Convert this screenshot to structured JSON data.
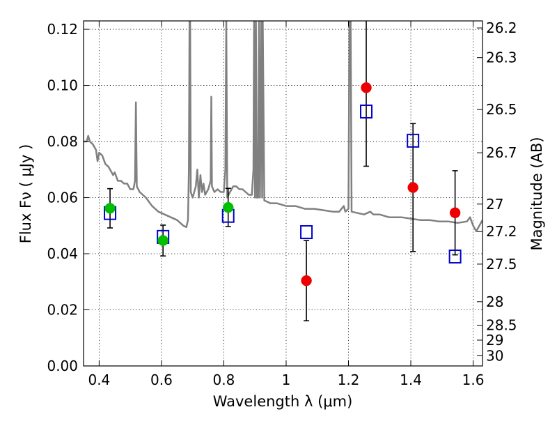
{
  "chart_data": {
    "type": "scatter",
    "xlabel": "Wavelength  λ (μm)",
    "ylabel": "Flux  Fν  ( μJy )",
    "ylabel_right": "Magnitude (AB)",
    "xlim": [
      0.35,
      1.63
    ],
    "ylim": [
      0.0,
      0.123
    ],
    "x_ticks": [
      0.4,
      0.6,
      0.8,
      1.0,
      1.2,
      1.4,
      1.6
    ],
    "x_tick_labels": [
      "0.4",
      "0.6",
      "0.8",
      "1",
      "1.2",
      "1.4",
      "1.6"
    ],
    "y_ticks": [
      0.0,
      0.02,
      0.04,
      0.06,
      0.08,
      0.1,
      0.12
    ],
    "y_tick_labels": [
      "0.00",
      "0.02",
      "0.04",
      "0.06",
      "0.08",
      "0.10",
      "0.12"
    ],
    "right_ticks": [
      {
        "label": "26.2",
        "flux": 0.1205
      },
      {
        "label": "26.3",
        "flux": 0.1099
      },
      {
        "label": "26.5",
        "flux": 0.0914
      },
      {
        "label": "26.7",
        "flux": 0.076
      },
      {
        "label": "27",
        "flux": 0.0577
      },
      {
        "label": "27.2",
        "flux": 0.0479
      },
      {
        "label": "27.5",
        "flux": 0.0363
      },
      {
        "label": "28",
        "flux": 0.0229
      },
      {
        "label": "28.5",
        "flux": 0.0145
      },
      {
        "label": "29",
        "flux": 0.0092
      },
      {
        "label": "30",
        "flux": 0.0036
      }
    ],
    "grid": true,
    "colors": {
      "model_sed": "#808080",
      "green_points": "#00c000",
      "red_points": "#ee0000",
      "model_boxes": "#0000cc",
      "errorbars": "#000000"
    },
    "series": [
      {
        "style": "model-sed-line",
        "points": [
          [
            0.35,
            0.08
          ],
          [
            0.36,
            0.08
          ],
          [
            0.365,
            0.082
          ],
          [
            0.37,
            0.08
          ],
          [
            0.38,
            0.079
          ],
          [
            0.39,
            0.077
          ],
          [
            0.395,
            0.073
          ],
          [
            0.4,
            0.076
          ],
          [
            0.41,
            0.075
          ],
          [
            0.42,
            0.072
          ],
          [
            0.43,
            0.071
          ],
          [
            0.44,
            0.069
          ],
          [
            0.445,
            0.068
          ],
          [
            0.45,
            0.069
          ],
          [
            0.46,
            0.066
          ],
          [
            0.47,
            0.066
          ],
          [
            0.48,
            0.065
          ],
          [
            0.49,
            0.065
          ],
          [
            0.5,
            0.063
          ],
          [
            0.51,
            0.063
          ],
          [
            0.515,
            0.066
          ],
          [
            0.518,
            0.094
          ],
          [
            0.521,
            0.064
          ],
          [
            0.53,
            0.062
          ],
          [
            0.55,
            0.06
          ],
          [
            0.57,
            0.057
          ],
          [
            0.59,
            0.055
          ],
          [
            0.61,
            0.054
          ],
          [
            0.63,
            0.053
          ],
          [
            0.65,
            0.052
          ],
          [
            0.67,
            0.05
          ],
          [
            0.68,
            0.0495
          ],
          [
            0.685,
            0.052
          ],
          [
            0.688,
            0.07
          ],
          [
            0.69,
            0.123
          ],
          [
            0.692,
            0.123
          ],
          [
            0.694,
            0.062
          ],
          [
            0.7,
            0.06
          ],
          [
            0.71,
            0.064
          ],
          [
            0.715,
            0.07
          ],
          [
            0.72,
            0.06
          ],
          [
            0.725,
            0.068
          ],
          [
            0.73,
            0.062
          ],
          [
            0.735,
            0.065
          ],
          [
            0.74,
            0.061
          ],
          [
            0.75,
            0.063
          ],
          [
            0.758,
            0.066
          ],
          [
            0.76,
            0.096
          ],
          [
            0.762,
            0.064
          ],
          [
            0.77,
            0.062
          ],
          [
            0.78,
            0.063
          ],
          [
            0.79,
            0.062
          ],
          [
            0.8,
            0.062
          ],
          [
            0.805,
            0.07
          ],
          [
            0.808,
            0.123
          ],
          [
            0.811,
            0.06
          ],
          [
            0.82,
            0.062
          ],
          [
            0.83,
            0.064
          ],
          [
            0.84,
            0.064
          ],
          [
            0.85,
            0.063
          ],
          [
            0.86,
            0.063
          ],
          [
            0.87,
            0.062
          ],
          [
            0.88,
            0.061
          ],
          [
            0.89,
            0.061
          ],
          [
            0.895,
            0.07
          ],
          [
            0.897,
            0.123
          ],
          [
            0.9,
            0.06
          ],
          [
            0.903,
            0.123
          ],
          [
            0.906,
            0.06
          ],
          [
            0.91,
            0.06
          ],
          [
            0.913,
            0.123
          ],
          [
            0.916,
            0.06
          ],
          [
            0.92,
            0.123
          ],
          [
            0.923,
            0.06
          ],
          [
            0.925,
            0.123
          ],
          [
            0.93,
            0.059
          ],
          [
            0.95,
            0.058
          ],
          [
            0.97,
            0.058
          ],
          [
            1.0,
            0.057
          ],
          [
            1.03,
            0.057
          ],
          [
            1.06,
            0.056
          ],
          [
            1.09,
            0.056
          ],
          [
            1.12,
            0.0555
          ],
          [
            1.15,
            0.055
          ],
          [
            1.17,
            0.055
          ],
          [
            1.185,
            0.057
          ],
          [
            1.19,
            0.055
          ],
          [
            1.2,
            0.056
          ],
          [
            1.203,
            0.123
          ],
          [
            1.207,
            0.123
          ],
          [
            1.21,
            0.055
          ],
          [
            1.25,
            0.054
          ],
          [
            1.27,
            0.055
          ],
          [
            1.28,
            0.054
          ],
          [
            1.3,
            0.054
          ],
          [
            1.33,
            0.053
          ],
          [
            1.37,
            0.053
          ],
          [
            1.4,
            0.0525
          ],
          [
            1.43,
            0.052
          ],
          [
            1.46,
            0.052
          ],
          [
            1.49,
            0.0515
          ],
          [
            1.52,
            0.0515
          ],
          [
            1.55,
            0.051
          ],
          [
            1.58,
            0.0515
          ],
          [
            1.59,
            0.053
          ],
          [
            1.6,
            0.05
          ],
          [
            1.61,
            0.048
          ],
          [
            1.62,
            0.05
          ],
          [
            1.63,
            0.052
          ]
        ]
      },
      {
        "style": "green-circles",
        "points": [
          {
            "x": 0.435,
            "y": 0.0562,
            "err": 0.007
          },
          {
            "x": 0.605,
            "y": 0.0447,
            "err": 0.0055
          },
          {
            "x": 0.814,
            "y": 0.0565,
            "err": 0.0068
          }
        ]
      },
      {
        "style": "red-circles",
        "points": [
          {
            "x": 1.065,
            "y": 0.0304,
            "err": 0.0143
          },
          {
            "x": 1.257,
            "y": 0.0992,
            "err": 0.028
          },
          {
            "x": 1.407,
            "y": 0.0636,
            "err": 0.0228
          },
          {
            "x": 1.542,
            "y": 0.0546,
            "err": 0.015
          }
        ]
      },
      {
        "style": "blue-open-squares",
        "points": [
          {
            "x": 0.435,
            "y": 0.0545
          },
          {
            "x": 0.605,
            "y": 0.046
          },
          {
            "x": 0.814,
            "y": 0.0535
          },
          {
            "x": 1.065,
            "y": 0.0477
          },
          {
            "x": 1.257,
            "y": 0.0907
          },
          {
            "x": 1.407,
            "y": 0.0803
          },
          {
            "x": 1.542,
            "y": 0.039
          }
        ]
      }
    ]
  }
}
